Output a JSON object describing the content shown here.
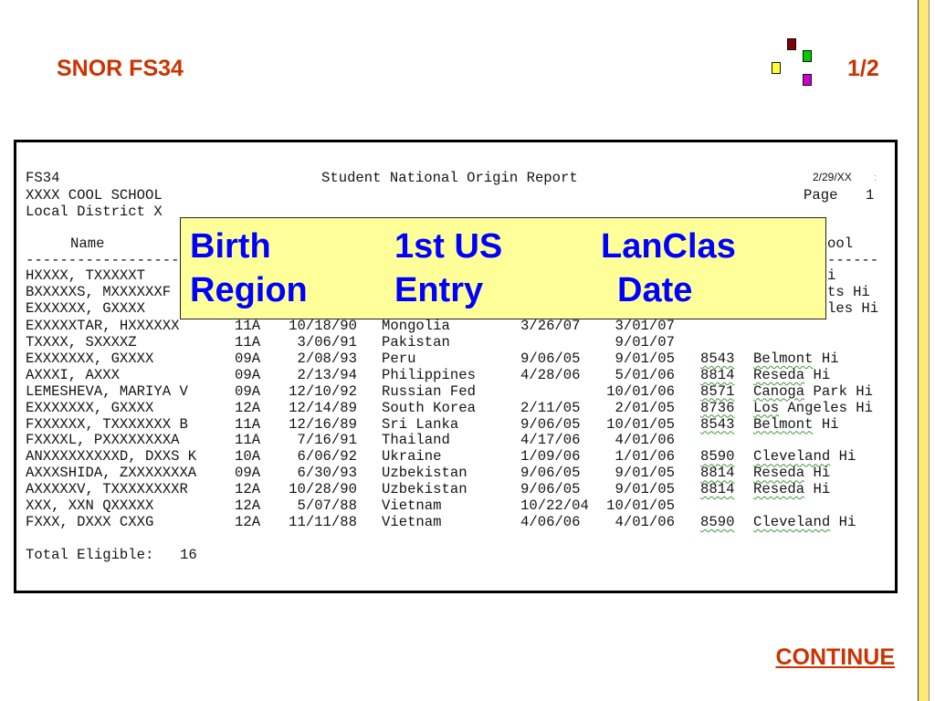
{
  "slide": {
    "title": "SNOR FS34",
    "page_indicator": "1/2",
    "continue_label": "CONTINUE",
    "accent_color": "#CC3300",
    "sidebar_color": "#FFE873",
    "decor": {
      "maroon": "#800000",
      "green": "#00CC00",
      "yellow": "#FFFF33",
      "magenta": "#CC00CC"
    }
  },
  "report": {
    "form_id": "FS34",
    "title": "Student National Origin Report",
    "date": "2/29/XX",
    "date_suffix": ":",
    "school": "XXXX COOL SCHOOL",
    "page_label": "Page",
    "page_number": "1",
    "district": "Local District X",
    "header_name": "Name",
    "header_tail": "ool",
    "rule_left": "------------------",
    "rule_right": "------",
    "partial_rows": [
      {
        "name": "HXXXX, TXXXXXT",
        "tail": "i"
      },
      {
        "name": "BXXXXXS, MXXXXXXF",
        "tail": "ts Hi"
      },
      {
        "name": "EXXXXXX, GXXXX",
        "tail": "les Hi"
      }
    ],
    "rows": [
      {
        "name": "EXXXXXTAR, HXXXXXX",
        "grade": "11A",
        "birth_date": "10/18/90",
        "birth_region": "Mongolia",
        "first_us_entry": "3/26/07",
        "lanclas_date": "3/01/07"
      },
      {
        "name": "TXXXX, SXXXXZ",
        "grade": "11A",
        "birth_date": "3/06/91",
        "birth_region": "Pakistan",
        "lanclas_date": "9/01/07"
      },
      {
        "name": "EXXXXXXX, GXXXX",
        "grade": "09A",
        "birth_date": "2/08/93",
        "birth_region": "Peru",
        "first_us_entry": "9/06/05",
        "lanclas_date": "9/01/05",
        "school_code": "8543",
        "school_name": "Belmont Hi"
      },
      {
        "name": "AXXXI, AXXX",
        "grade": "09A",
        "birth_date": "2/13/94",
        "birth_region": "Philippines",
        "first_us_entry": "4/28/06",
        "lanclas_date": "5/01/06",
        "school_code": "8814",
        "school_name": "Reseda Hi"
      },
      {
        "name": "LEMESHEVA, MARIYA V",
        "grade": "09A",
        "birth_date": "12/10/92",
        "birth_region": "Russian Fed",
        "lanclas_date": "10/01/06",
        "school_code": "8571",
        "school_name": "Canoga Park Hi"
      },
      {
        "name": "EXXXXXXX, GXXXX",
        "grade": "12A",
        "birth_date": "12/14/89",
        "birth_region": "South Korea",
        "first_us_entry": "2/11/05",
        "lanclas_date": "2/01/05",
        "school_code": "8736",
        "school_name": "Los Angeles Hi"
      },
      {
        "name": "FXXXXXX, TXXXXXXX B",
        "grade": "11A",
        "birth_date": "12/16/89",
        "birth_region": "Sri Lanka",
        "first_us_entry": "9/06/05",
        "lanclas_date": "10/01/05",
        "school_code": "8543",
        "school_name": "Belmont Hi"
      },
      {
        "name": "FXXXXL, PXXXXXXXXA",
        "grade": "11A",
        "birth_date": "7/16/91",
        "birth_region": "Thailand",
        "first_us_entry": "4/17/06",
        "lanclas_date": "4/01/06"
      },
      {
        "name": "ANXXXXXXXXXD, DXXS K",
        "grade": "10A",
        "birth_date": "6/06/92",
        "birth_region": "Ukraine",
        "first_us_entry": "1/09/06",
        "lanclas_date": "1/01/06",
        "school_code": "8590",
        "school_name": "Cleveland Hi"
      },
      {
        "name": "AXXXSHIDA, ZXXXXXXXA",
        "grade": "09A",
        "birth_date": "6/30/93",
        "birth_region": "Uzbekistan",
        "first_us_entry": "9/06/05",
        "lanclas_date": "9/01/05",
        "school_code": "8814",
        "school_name": "Reseda Hi"
      },
      {
        "name": "AXXXXXV, TXXXXXXXXR",
        "grade": "12A",
        "birth_date": "10/28/90",
        "birth_region": "Uzbekistan",
        "first_us_entry": "9/06/05",
        "lanclas_date": "9/01/05",
        "school_code": "8814",
        "school_name": "Reseda Hi"
      },
      {
        "name": "XXX, XXN QXXXXX",
        "grade": "12A",
        "birth_date": "5/07/88",
        "birth_region": "Vietnam",
        "first_us_entry": "10/22/04",
        "lanclas_date": "10/01/05"
      },
      {
        "name": "FXXX, DXXX CXXG",
        "grade": "12A",
        "birth_date": "11/11/88",
        "birth_region": "Vietnam",
        "first_us_entry": "4/06/06",
        "lanclas_date": "4/01/06",
        "school_code": "8590",
        "school_name": "Cleveland Hi"
      }
    ],
    "total_label": "Total Eligible:",
    "total_value": "16"
  },
  "callout": {
    "background": "#FFFF99",
    "text_color": "#0000FF",
    "columns": [
      {
        "line1": "Birth",
        "line2": "Region"
      },
      {
        "line1": "1st US",
        "line2": "Entry"
      },
      {
        "line1": "LanClas",
        "line2": "Date"
      }
    ]
  }
}
